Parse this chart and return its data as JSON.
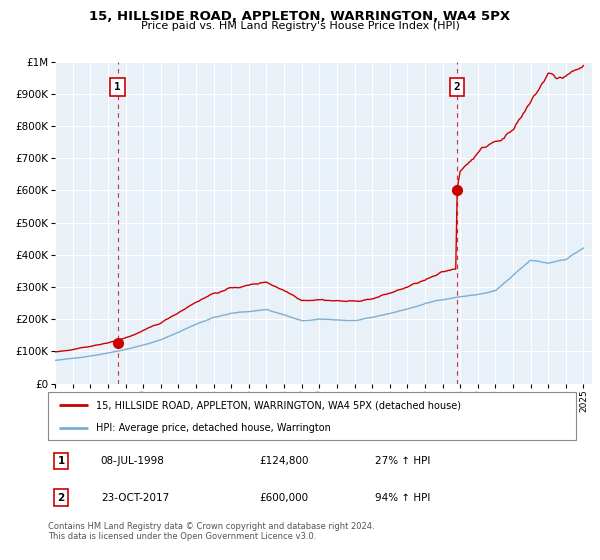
{
  "title": "15, HILLSIDE ROAD, APPLETON, WARRINGTON, WA4 5PX",
  "subtitle": "Price paid vs. HM Land Registry's House Price Index (HPI)",
  "legend_line1": "15, HILLSIDE ROAD, APPLETON, WARRINGTON, WA4 5PX (detached house)",
  "legend_line2": "HPI: Average price, detached house, Warrington",
  "annotation1_label": "1",
  "annotation1_date": "08-JUL-1998",
  "annotation1_price": "£124,800",
  "annotation1_hpi": "27% ↑ HPI",
  "annotation1_year": 1998.54,
  "annotation1_value": 124800,
  "annotation2_label": "2",
  "annotation2_date": "23-OCT-2017",
  "annotation2_price": "£600,000",
  "annotation2_hpi": "94% ↑ HPI",
  "annotation2_year": 2017.81,
  "annotation2_value": 600000,
  "red_color": "#cc0000",
  "blue_color": "#7bafd4",
  "plot_bg_color": "#e8f0f8",
  "grid_color": "#ffffff",
  "background_color": "#ffffff",
  "ylim": [
    0,
    1000000
  ],
  "xlim": [
    1995.0,
    2025.5
  ],
  "footer": "Contains HM Land Registry data © Crown copyright and database right 2024.\nThis data is licensed under the Open Government Licence v3.0."
}
